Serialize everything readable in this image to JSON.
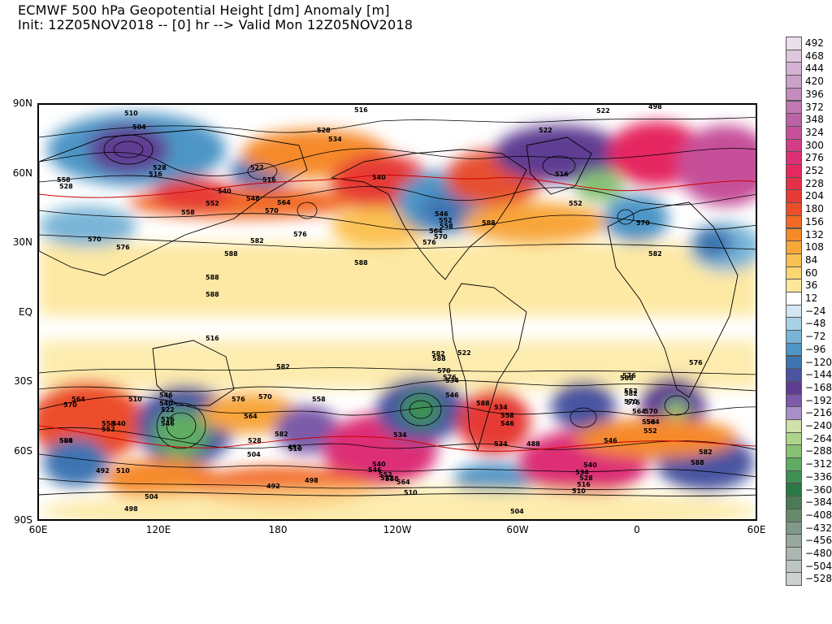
{
  "title_line1": "ECMWF 500 hPa Geopotential Height [dm] Anomaly [m]",
  "title_line2": "Init: 12Z05NOV2018 -- [0] hr --> Valid Mon 12Z05NOV2018",
  "lat_labels": [
    "90N",
    "60N",
    "30N",
    "EQ",
    "30S",
    "60S",
    "90S"
  ],
  "lon_labels": [
    "60E",
    "120E",
    "180",
    "120W",
    "60W",
    "0",
    "60E"
  ],
  "colorbar": {
    "levels": [
      "492",
      "468",
      "444",
      "420",
      "396",
      "372",
      "348",
      "324",
      "300",
      "276",
      "252",
      "228",
      "204",
      "180",
      "156",
      "132",
      "108",
      "84",
      "60",
      "36",
      "12",
      "−24",
      "−48",
      "−72",
      "−96",
      "−120",
      "−144",
      "−168",
      "−192",
      "−216",
      "−240",
      "−264",
      "−288",
      "−312",
      "−336",
      "−360",
      "−384",
      "−408",
      "−432",
      "−456",
      "−480",
      "−504",
      "−528"
    ],
    "colors": [
      "#e9e0ec",
      "#ddc8de",
      "#d3b2d3",
      "#caa0c8",
      "#c48cbe",
      "#bf78b4",
      "#bb62a8",
      "#c6509a",
      "#d23d88",
      "#dd2f76",
      "#e52860",
      "#e6304a",
      "#e63a36",
      "#ec4e2a",
      "#f26a26",
      "#f68a2a",
      "#f8a63a",
      "#fbc152",
      "#fdd674",
      "#fde79a",
      "#ffffff",
      "#d4e6f2",
      "#a9d1e6",
      "#79b5d8",
      "#4d95c6",
      "#3d74b1",
      "#4a54a0",
      "#5e3e92",
      "#7a5aa9",
      "#a98fc7",
      "#cfe0a8",
      "#aed48c",
      "#88c275",
      "#5fac63",
      "#3e9152",
      "#2a7a46",
      "#4c7a56",
      "#678a6d",
      "#80998a",
      "#97a89f",
      "#abb8b1",
      "#bcc6c0",
      "#cbd1cd"
    ]
  },
  "contours": {
    "map_labels": [
      "510",
      "504",
      "516",
      "516",
      "528",
      "534",
      "522",
      "522",
      "516",
      "552",
      "540",
      "548",
      "564",
      "552",
      "558",
      "570",
      "576",
      "582",
      "588",
      "588",
      "528",
      "522",
      "540",
      "570",
      "582",
      "588",
      "570",
      "576",
      "582",
      "588",
      "546",
      "552",
      "558",
      "564",
      "570",
      "576",
      "564",
      "570",
      "576",
      "588",
      "582",
      "576",
      "570",
      "564",
      "588",
      "582",
      "576",
      "570",
      "564",
      "558",
      "552",
      "546",
      "540",
      "534",
      "528",
      "522",
      "516",
      "510",
      "504",
      "498",
      "492",
      "588",
      "558",
      "546",
      "522",
      "516",
      "498",
      "504",
      "510",
      "522",
      "528",
      "534",
      "540",
      "546",
      "552",
      "558",
      "564",
      "570",
      "576",
      "582",
      "588",
      "558",
      "546",
      "534",
      "510",
      "504",
      "498",
      "492",
      "510",
      "516",
      "528",
      "534",
      "540",
      "546",
      "552",
      "558",
      "564",
      "570",
      "576",
      "582",
      "588",
      "492",
      "488",
      "504",
      "510",
      "516",
      "528",
      "534",
      "540",
      "546",
      "552",
      "558",
      "570",
      "576"
    ],
    "colors": {
      "height_contour": "#000000",
      "highlight_contour": "#cc0000"
    }
  }
}
